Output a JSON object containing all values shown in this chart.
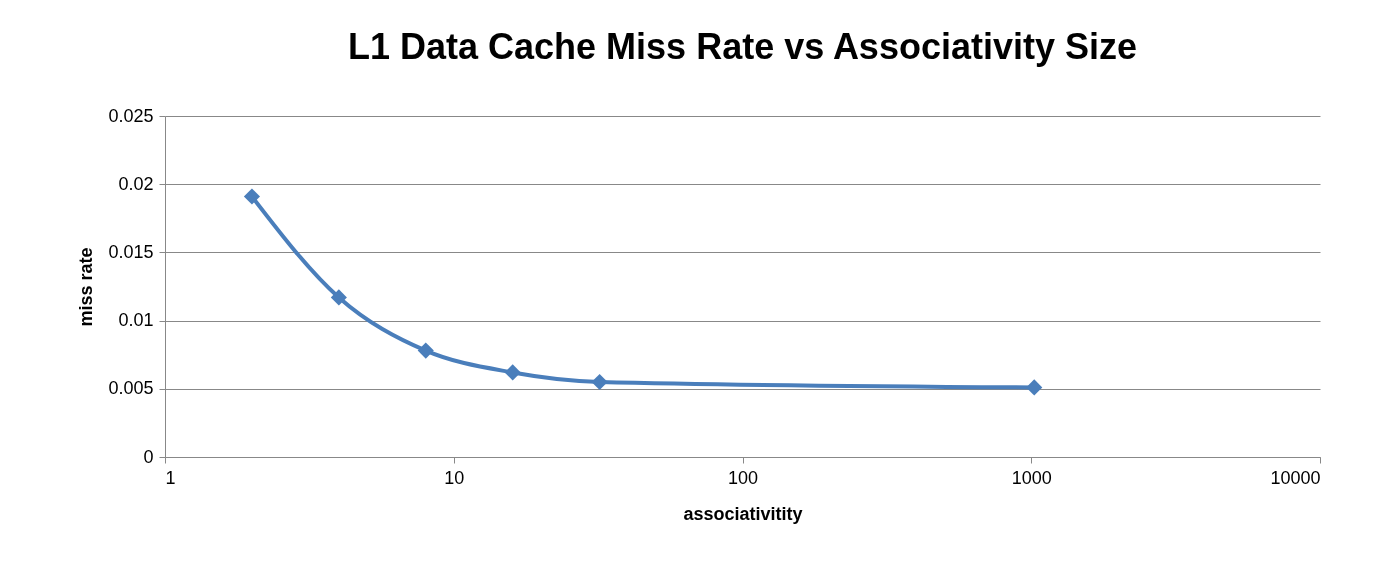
{
  "chart_data": {
    "type": "line",
    "title": "L1 Data Cache Miss Rate vs Associativity Size",
    "xlabel": "associativitity",
    "ylabel": "miss rate",
    "x": [
      2,
      4,
      8,
      16,
      32,
      1024
    ],
    "series": [
      {
        "color": "#4a7ebb",
        "values": [
          0.0191,
          0.0117,
          0.0078,
          0.0062,
          0.0055,
          0.0051
        ]
      }
    ],
    "log": "x",
    "xlim": [
      1,
      10000
    ],
    "xticks": [
      1,
      10,
      100,
      1000,
      10000
    ],
    "ylim": [
      0,
      0.025
    ],
    "yticks": [
      0,
      0.005,
      0.01,
      0.015,
      0.02,
      0.025
    ],
    "grid": "y",
    "marker": "diamond",
    "line_style": "solid"
  }
}
